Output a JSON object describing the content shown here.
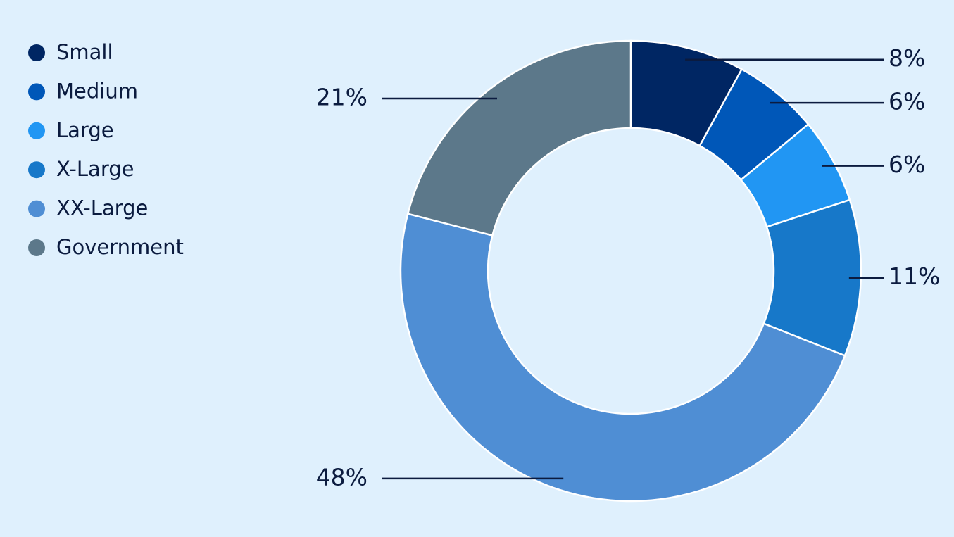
{
  "chart_data": {
    "type": "donut",
    "categories": [
      "Small",
      "Medium",
      "Large",
      "X-Large",
      "XX-Large",
      "Government"
    ],
    "values": [
      8,
      6,
      6,
      11,
      48,
      21
    ],
    "value_labels": [
      "8%",
      "6%",
      "6%",
      "11%",
      "48%",
      "21%"
    ],
    "colors": [
      "#002663",
      "#0057b8",
      "#2196f3",
      "#1778c9",
      "#4f8ed4",
      "#5c788a"
    ],
    "legend": "top-left"
  }
}
